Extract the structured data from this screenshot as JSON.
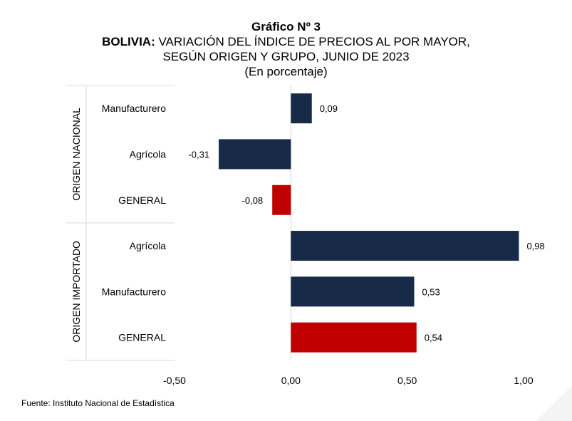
{
  "title": {
    "number": "Gráfico Nº 3",
    "country": "BOLIVIA:",
    "line1_rest": "VARIACIÓN DEL ÍNDICE DE PRECIOS AL POR MAYOR,",
    "line2": "SEGÚN ORIGEN Y GRUPO, JUNIO DE 2023",
    "unit": "(En porcentaje)"
  },
  "source": "Fuente: Instituto Nacional de Estadística",
  "colors": {
    "navy": "#172a48",
    "red": "#c00000"
  },
  "chart_data": {
    "type": "bar",
    "orientation": "horizontal",
    "xlim": [
      -0.5,
      1.0
    ],
    "x_ticks": [
      {
        "value": -0.5,
        "label": "-0,50"
      },
      {
        "value": 0.0,
        "label": "0,00"
      },
      {
        "value": 0.5,
        "label": "0,50"
      },
      {
        "value": 1.0,
        "label": "1,00"
      }
    ],
    "grid": false,
    "legend": "none",
    "groups": [
      {
        "name": "ORIGEN NACIONAL",
        "start": 0,
        "end": 2
      },
      {
        "name": "ORIGEN IMPORTADO",
        "start": 3,
        "end": 5
      }
    ],
    "bars": [
      {
        "category": "Manufacturero",
        "value": 0.09,
        "label": "0,09",
        "color": "#172a48"
      },
      {
        "category": "Agrícola",
        "value": -0.31,
        "label": "-0,31",
        "color": "#172a48"
      },
      {
        "category": "GENERAL",
        "value": -0.08,
        "label": "-0,08",
        "color": "#c00000"
      },
      {
        "category": "Agrícola",
        "value": 0.98,
        "label": "0,98",
        "color": "#172a48"
      },
      {
        "category": "Manufacturero",
        "value": 0.53,
        "label": "0,53",
        "color": "#172a48"
      },
      {
        "category": "GENERAL",
        "value": 0.54,
        "label": "0,54",
        "color": "#c00000"
      }
    ]
  }
}
